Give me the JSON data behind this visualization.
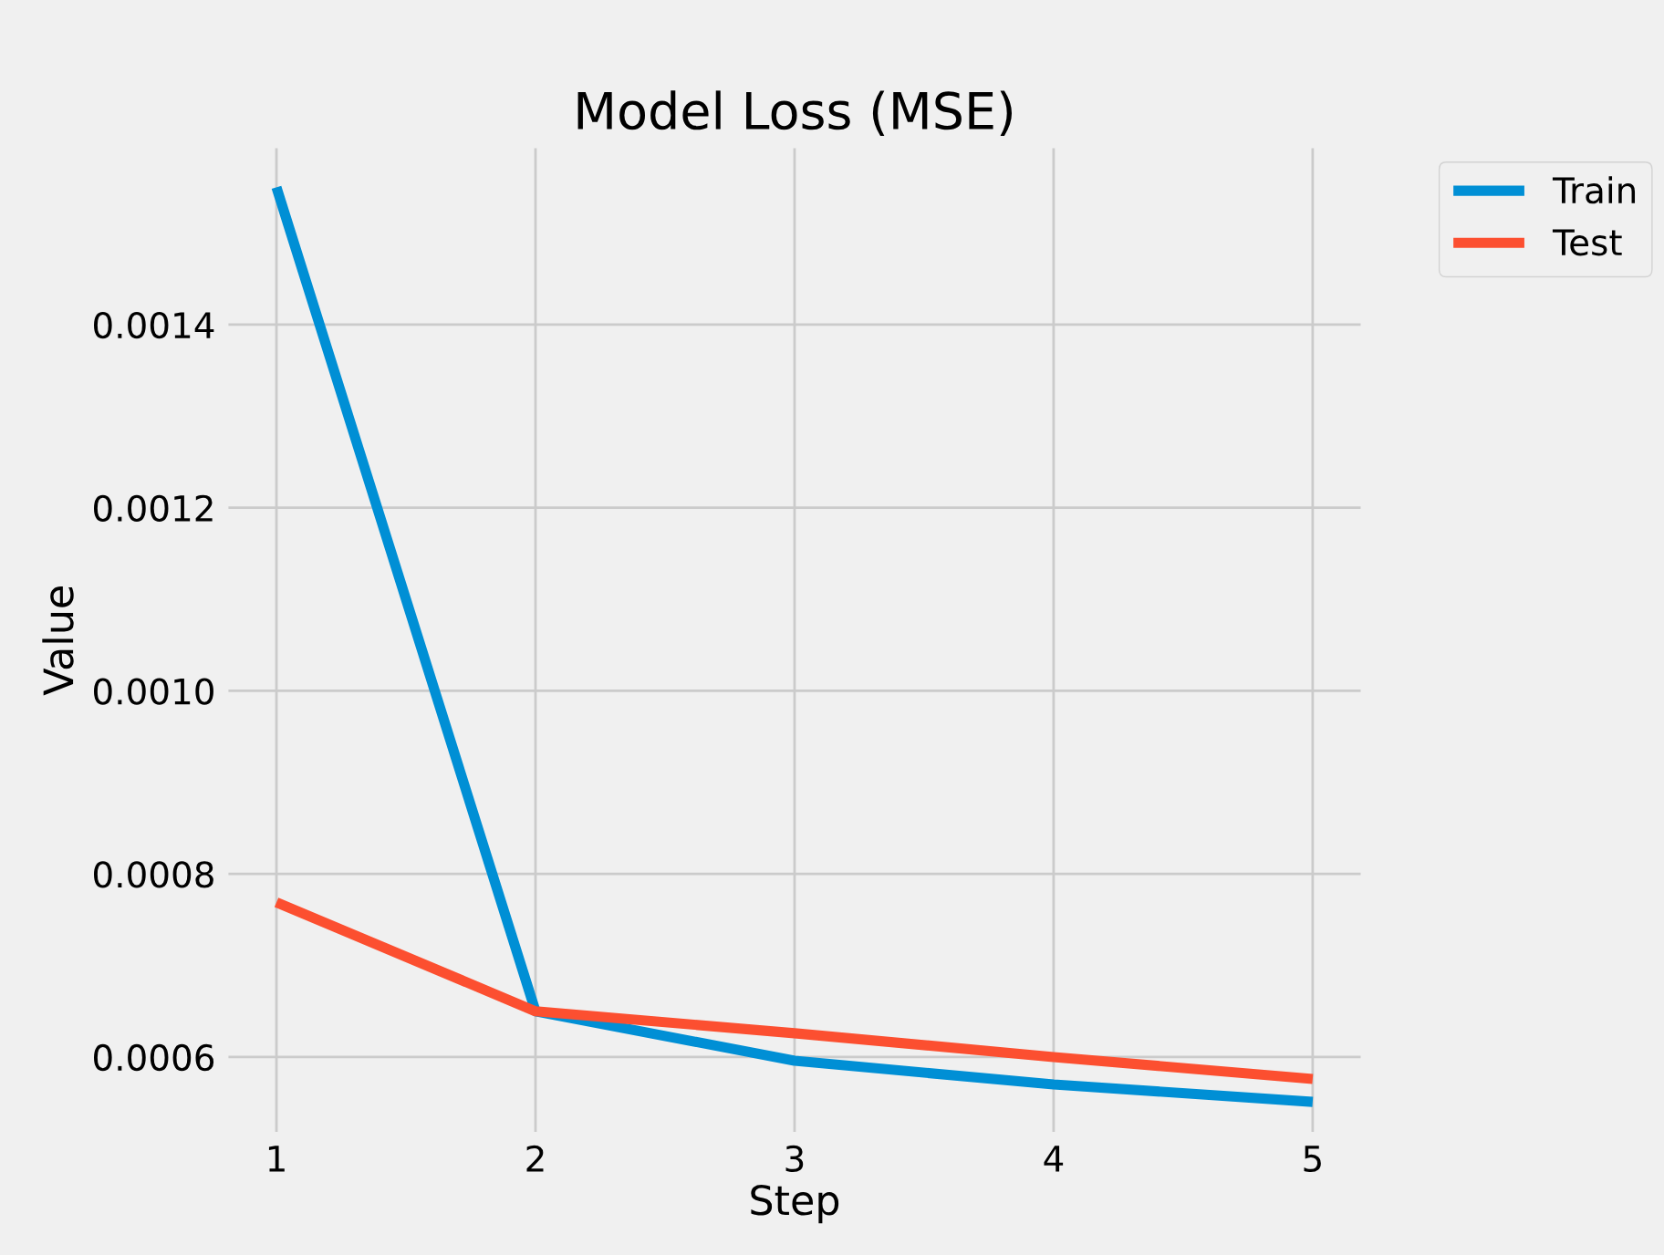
{
  "chart_data": {
    "type": "line",
    "title": "Model Loss (MSE)",
    "xlabel": "Step",
    "ylabel": "Value",
    "x": [
      1,
      2,
      3,
      4,
      5
    ],
    "series": [
      {
        "name": "Train",
        "color": "#008fd5",
        "values": [
          0.00155,
          0.00065,
          0.000596,
          0.00057,
          0.000551
        ]
      },
      {
        "name": "Test",
        "color": "#fc4f30",
        "values": [
          0.000769,
          0.00065,
          0.000626,
          0.0006,
          0.000576
        ]
      }
    ],
    "xlim": [
      0.8,
      5.2
    ],
    "ylim": [
      0.000514,
      0.001597
    ],
    "xticks": [
      1,
      2,
      3,
      4,
      5
    ],
    "yticks": [
      {
        "value": 0.0006,
        "label": "0.0006"
      },
      {
        "value": 0.0008,
        "label": "0.0008"
      },
      {
        "value": 0.001,
        "label": "0.0010"
      },
      {
        "value": 0.0012,
        "label": "0.0012"
      },
      {
        "value": 0.0014,
        "label": "0.0014"
      }
    ],
    "grid": true,
    "legend": "top right",
    "line_style": "solid",
    "marker": "none"
  }
}
